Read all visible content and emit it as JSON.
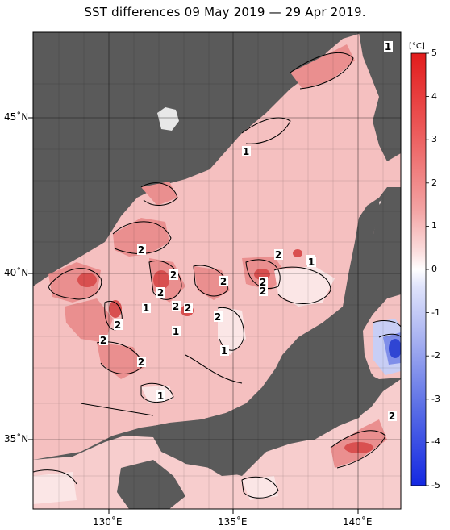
{
  "title": "SST differences 09 May 2019 — 29 Apr 2019.",
  "lat_labels": [
    "45˚N",
    "40˚N",
    "35˚N"
  ],
  "lon_labels": [
    "130˚E",
    "135˚E",
    "140˚E"
  ],
  "colorbar": {
    "unit": "[°C]",
    "ticks": [
      "5",
      "4",
      "3",
      "2",
      "1",
      "0",
      "-1",
      "-2",
      "-3",
      "-4",
      "-5"
    ]
  },
  "contour_labels": [
    "1",
    "1",
    "2",
    "2",
    "2",
    "1",
    "1",
    "2",
    "2",
    "2",
    "1",
    "2",
    "2",
    "2",
    "1",
    "2",
    "1",
    "2",
    "2",
    "1",
    "2",
    "2",
    "1",
    "2"
  ],
  "colors": {
    "land": "#5a5a5a",
    "sea_light_warm": "#f6c6c6",
    "sea_warm": "#ee9a9a",
    "sea_hot": "#e05e5e",
    "neutral": "#ffffff",
    "cold": "#3a4fd8"
  }
}
